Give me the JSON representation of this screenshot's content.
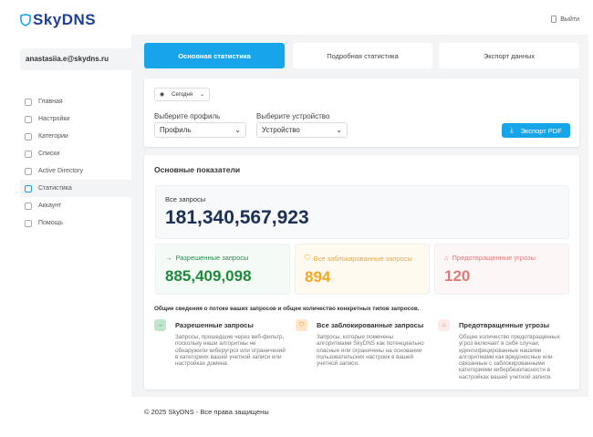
{
  "header": {
    "logo": "SkyDNS",
    "logout": "Выйти"
  },
  "sidebar": {
    "email": "anastasiia.e@skydns.ru",
    "items": [
      {
        "label": "Главная",
        "icon": "grid-icon"
      },
      {
        "label": "Настройки",
        "icon": "sliders-icon"
      },
      {
        "label": "Категории",
        "icon": "lock-icon"
      },
      {
        "label": "Списки",
        "icon": "list-icon"
      },
      {
        "label": "Active Directory",
        "icon": "network-icon"
      },
      {
        "label": "Статистика",
        "icon": "chart-icon",
        "active": true
      },
      {
        "label": "Аккаунт",
        "icon": "user-icon"
      },
      {
        "label": "Помощь",
        "icon": "help-icon"
      }
    ]
  },
  "tabs": [
    {
      "label": "Основная статистика",
      "active": true
    },
    {
      "label": "Подробная статистика"
    },
    {
      "label": "Экспорт данных"
    }
  ],
  "filters": {
    "period": "Сегодня",
    "profile_label": "Выберите профиль",
    "profile_value": "Профиль",
    "device_label": "Выберите устройство",
    "device_value": "Устройство",
    "export_pdf": "Экспорт PDF"
  },
  "stats": {
    "title": "Основные показатели",
    "total_label": "Все запросы",
    "total_value": "181,340,567,923",
    "allowed_label": "Разрешенные запросы",
    "allowed_value": "885,409,098",
    "blocked_label": "Все заблокированные запросы",
    "blocked_value": "894",
    "threats_label": "Предотвращенные угрозы",
    "threats_value": "120",
    "summary": "Общие сведения о потоке ваших запросов и общее количество конкретных типов запросов.",
    "info": [
      {
        "title": "Разрешенные запросы",
        "text": "Запросы, прошедшие через веб-фильтр, поскольку наши алгоритмы не обнаружили киберугроз или ограничений в категориях вашей учетной записи или настройках домена."
      },
      {
        "title": "Все заблокированные запросы",
        "text": "Запросы, которые помечены алгоритмами SkyDNS как потенциально опасные или ограничены на основании пользовательских настроек в вашей учетной записи."
      },
      {
        "title": "Предотвращенные угрозы",
        "text": "Общее количество предотвращенных угроз включает в себя случаи, идентифицированные нашими алгоритмами как вредоносные или связанные с заблокированными категориями кибербезопасности в настройках вашей учетной записи."
      }
    ]
  },
  "colors": {
    "accent": "#16a5e9",
    "allowed": "#1f8a3b",
    "blocked": "#f5a623",
    "threats": "#e07a7a"
  },
  "footer": "© 2025 SkyDNS - Все права защищены"
}
